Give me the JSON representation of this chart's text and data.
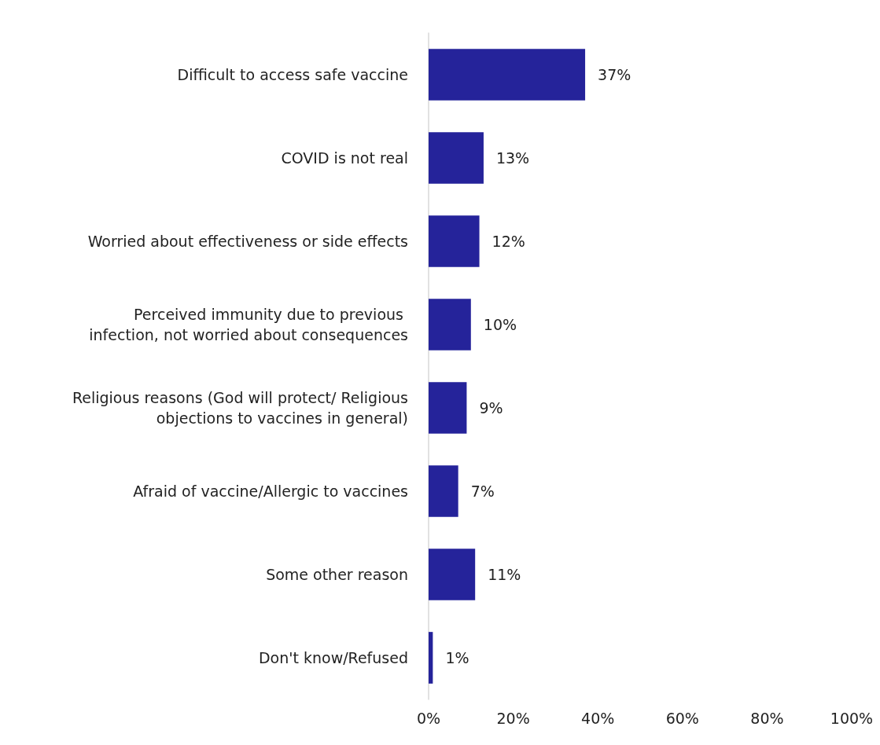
{
  "chart_data": {
    "type": "bar",
    "orientation": "horizontal",
    "categories": [
      "Difficult to access safe vaccine",
      "COVID is not real",
      "Worried about effectiveness or side effects",
      "Perceived immunity due to previous infection, not worried about consequences",
      "Religious reasons (God will protect/ Religious objections to vaccines in general)",
      "Afraid of vaccine/Allergic to vaccines",
      "Some other reason",
      "Don't know/Refused"
    ],
    "values": [
      37,
      13,
      12,
      10,
      9,
      7,
      11,
      1
    ],
    "value_labels": [
      "37%",
      "13%",
      "12%",
      "10%",
      "9%",
      "7%",
      "11%",
      "1%"
    ],
    "color": "#25239a",
    "xlim": [
      0,
      100
    ],
    "xticks": [
      {
        "value": 0,
        "label": "0%"
      },
      {
        "value": 20,
        "label": "20%"
      },
      {
        "value": 40,
        "label": "40%"
      },
      {
        "value": 60,
        "label": "60%"
      },
      {
        "value": 80,
        "label": "80%"
      },
      {
        "value": 100,
        "label": "100%"
      }
    ],
    "grid": false
  }
}
